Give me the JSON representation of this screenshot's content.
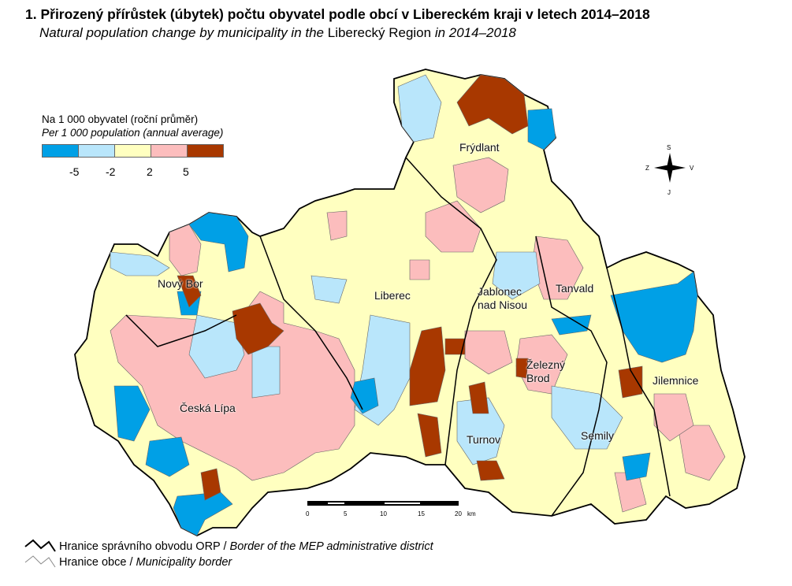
{
  "title": "1. Přirozený přírůstek (úbytek) počtu obyvatel podle obcí v Libereckém kraji v letech 2014–2018",
  "subtitle": {
    "part1": "Natural population change by municipality in the ",
    "part2": "Liberecký Region",
    "part3": " in 2014–2018"
  },
  "legend": {
    "label_cz": "Na 1 000 obyvatel (roční průměr)",
    "label_en": "Per 1 000 population (annual average)",
    "classes": [
      {
        "color": "#00a0e6"
      },
      {
        "color": "#b9e6fb"
      },
      {
        "color": "#ffffc0"
      },
      {
        "color": "#fcbdbd"
      },
      {
        "color": "#a83800"
      }
    ],
    "breaks": [
      "-5",
      "-2",
      "2",
      "5"
    ]
  },
  "towns": [
    "Frýdlant",
    "Nový Bor",
    "Liberec",
    "Jablonec nad Nisou",
    "Tanvald",
    "Železný Brod",
    "Jilemnice",
    "Česká Lípa",
    "Turnov",
    "Semily"
  ],
  "scale": {
    "ticks": [
      "0",
      "5",
      "10",
      "15",
      "20"
    ],
    "unit": "km"
  },
  "compass": {
    "n": "S",
    "s": "J",
    "w": "Z",
    "e": "V"
  },
  "footer": {
    "orp_cz": "Hranice správního obvodu ORP / ",
    "orp_en": "Border of the MEP administrative district",
    "obec_cz": "Hranice obce / ",
    "obec_en": "Municipality border"
  }
}
